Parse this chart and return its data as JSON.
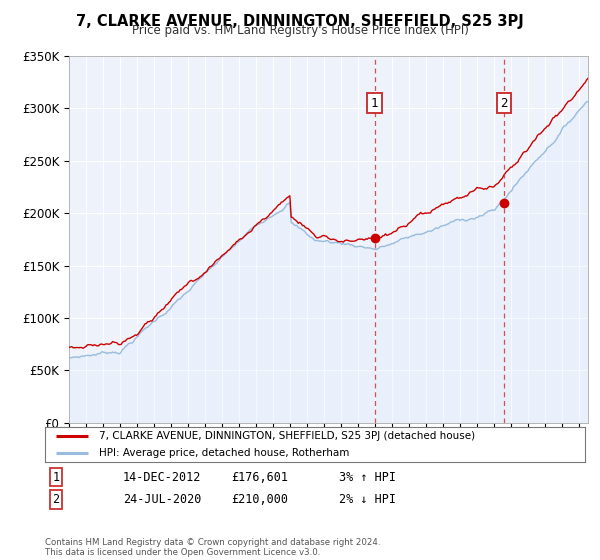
{
  "title": "7, CLARKE AVENUE, DINNINGTON, SHEFFIELD, S25 3PJ",
  "subtitle": "Price paid vs. HM Land Registry's House Price Index (HPI)",
  "legend_line1": "7, CLARKE AVENUE, DINNINGTON, SHEFFIELD, S25 3PJ (detached house)",
  "legend_line2": "HPI: Average price, detached house, Rotherham",
  "annotation1_date": "14-DEC-2012",
  "annotation1_price": "£176,601",
  "annotation1_hpi": "3% ↑ HPI",
  "annotation1_year": 2012.96,
  "annotation1_value": 176601,
  "annotation2_date": "24-JUL-2020",
  "annotation2_price": "£210,000",
  "annotation2_hpi": "2% ↓ HPI",
  "annotation2_year": 2020.56,
  "annotation2_value": 210000,
  "footer": "Contains HM Land Registry data © Crown copyright and database right 2024.\nThis data is licensed under the Open Government Licence v3.0.",
  "red_line_color": "#cc0000",
  "blue_line_color": "#99bbdd",
  "blue_fill_color": "#ddeeff",
  "vline_color": "#cc3333",
  "dot_color": "#cc0000",
  "plot_bg_color": "#eef2fa",
  "ylim": [
    0,
    350000
  ],
  "xlim_start": 1995,
  "xlim_end": 2025.5
}
